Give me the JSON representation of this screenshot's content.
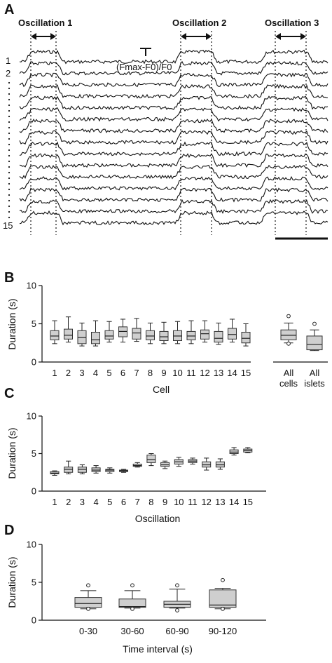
{
  "panel_a": {
    "label": "A",
    "oscillation_labels": [
      "Oscillation 1",
      "Oscillation 2",
      "Oscillation 3"
    ],
    "trace_labels": [
      "1",
      "2",
      "15"
    ],
    "trace_count": 15,
    "formula": "(Fmax-F0)/F0"
  },
  "chart_data": [
    {
      "type": "box",
      "panel": "B",
      "ylabel": "Duration (s)",
      "xlabel": "Cell",
      "ylim": [
        0,
        10
      ],
      "yticks": [
        0,
        5,
        10
      ],
      "categories": [
        "1",
        "2",
        "3",
        "4",
        "5",
        "6",
        "7",
        "8",
        "9",
        "10",
        "11",
        "12",
        "13",
        "14",
        "15"
      ],
      "boxes": [
        {
          "min": 2.4,
          "q1": 2.9,
          "median": 3.4,
          "q3": 4.1,
          "max": 5.4
        },
        {
          "min": 2.6,
          "q1": 3.0,
          "median": 3.5,
          "q3": 4.3,
          "max": 5.9
        },
        {
          "min": 2.1,
          "q1": 2.4,
          "median": 3.2,
          "q3": 4.1,
          "max": 5.1
        },
        {
          "min": 2.1,
          "q1": 2.4,
          "median": 2.9,
          "q3": 3.9,
          "max": 5.4
        },
        {
          "min": 2.6,
          "q1": 3.0,
          "median": 3.4,
          "q3": 4.1,
          "max": 5.3
        },
        {
          "min": 2.6,
          "q1": 3.3,
          "median": 4.0,
          "q3": 4.6,
          "max": 5.6
        },
        {
          "min": 2.7,
          "q1": 3.0,
          "median": 3.8,
          "q3": 4.4,
          "max": 5.7
        },
        {
          "min": 2.4,
          "q1": 2.9,
          "median": 3.4,
          "q3": 4.1,
          "max": 5.1
        },
        {
          "min": 2.4,
          "q1": 2.8,
          "median": 3.3,
          "q3": 4.0,
          "max": 5.2
        },
        {
          "min": 2.4,
          "q1": 2.8,
          "median": 3.4,
          "q3": 4.1,
          "max": 5.3
        },
        {
          "min": 2.4,
          "q1": 2.9,
          "median": 3.4,
          "q3": 4.0,
          "max": 5.4
        },
        {
          "min": 2.6,
          "q1": 3.0,
          "median": 3.7,
          "q3": 4.2,
          "max": 5.4
        },
        {
          "min": 2.3,
          "q1": 2.6,
          "median": 3.1,
          "q3": 4.0,
          "max": 5.1
        },
        {
          "min": 2.6,
          "q1": 3.0,
          "median": 3.6,
          "q3": 4.4,
          "max": 5.6
        },
        {
          "min": 2.1,
          "q1": 2.5,
          "median": 3.1,
          "q3": 3.9,
          "max": 5.0
        }
      ],
      "summary": {
        "categories": [
          "All cells",
          "All islets"
        ],
        "boxes": [
          {
            "min": 2.5,
            "q1": 2.9,
            "median": 3.5,
            "q3": 4.2,
            "max": 5.1,
            "outliers": [
              6.0,
              2.4
            ]
          },
          {
            "min": 1.5,
            "q1": 1.6,
            "median": 2.3,
            "q3": 3.4,
            "max": 4.2,
            "outliers": [
              5.0
            ]
          }
        ]
      }
    },
    {
      "type": "box",
      "panel": "C",
      "ylabel": "Duration (s)",
      "xlabel": "Oscillation",
      "ylim": [
        0,
        10
      ],
      "yticks": [
        0,
        5,
        10
      ],
      "categories": [
        "1",
        "2",
        "3",
        "4",
        "5",
        "6",
        "7",
        "8",
        "9",
        "10",
        "11",
        "12",
        "13",
        "14",
        "15"
      ],
      "boxes": [
        {
          "min": 2.1,
          "q1": 2.3,
          "median": 2.4,
          "q3": 2.6,
          "max": 2.7
        },
        {
          "min": 2.3,
          "q1": 2.5,
          "median": 2.9,
          "q3": 3.2,
          "max": 4.0
        },
        {
          "min": 2.3,
          "q1": 2.5,
          "median": 2.9,
          "q3": 3.2,
          "max": 3.5
        },
        {
          "min": 2.4,
          "q1": 2.6,
          "median": 2.8,
          "q3": 3.1,
          "max": 3.4
        },
        {
          "min": 2.4,
          "q1": 2.6,
          "median": 2.8,
          "q3": 2.9,
          "max": 3.1
        },
        {
          "min": 2.5,
          "q1": 2.6,
          "median": 2.7,
          "q3": 2.8,
          "max": 2.9
        },
        {
          "min": 3.2,
          "q1": 3.3,
          "median": 3.4,
          "q3": 3.6,
          "max": 3.8
        },
        {
          "min": 3.4,
          "q1": 3.8,
          "median": 4.2,
          "q3": 4.8,
          "max": 5.0
        },
        {
          "min": 3.0,
          "q1": 3.3,
          "median": 3.5,
          "q3": 3.8,
          "max": 4.0
        },
        {
          "min": 3.3,
          "q1": 3.6,
          "median": 3.9,
          "q3": 4.2,
          "max": 4.5
        },
        {
          "min": 3.6,
          "q1": 3.8,
          "median": 4.0,
          "q3": 4.2,
          "max": 4.4
        },
        {
          "min": 2.8,
          "q1": 3.2,
          "median": 3.5,
          "q3": 3.9,
          "max": 4.4
        },
        {
          "min": 2.9,
          "q1": 3.2,
          "median": 3.5,
          "q3": 3.9,
          "max": 4.3
        },
        {
          "min": 4.8,
          "q1": 5.0,
          "median": 5.2,
          "q3": 5.5,
          "max": 5.8
        },
        {
          "min": 5.1,
          "q1": 5.2,
          "median": 5.4,
          "q3": 5.6,
          "max": 5.8
        }
      ]
    },
    {
      "type": "box",
      "panel": "D",
      "ylabel": "Duration (s)",
      "xlabel": "Time interval (s)",
      "ylim": [
        0,
        10
      ],
      "yticks": [
        0,
        5,
        10
      ],
      "categories": [
        "0-30",
        "30-60",
        "60-90",
        "90-120"
      ],
      "boxes": [
        {
          "min": 1.5,
          "q1": 1.7,
          "median": 2.2,
          "q3": 3.0,
          "max": 3.9,
          "outliers": [
            4.6,
            1.5
          ]
        },
        {
          "min": 1.6,
          "q1": 1.7,
          "median": 1.8,
          "q3": 2.8,
          "max": 3.9,
          "outliers": [
            4.6,
            1.5
          ]
        },
        {
          "min": 1.6,
          "q1": 1.7,
          "median": 2.1,
          "q3": 2.5,
          "max": 4.1,
          "outliers": [
            4.6,
            1.3
          ]
        },
        {
          "min": 1.5,
          "q1": 1.7,
          "median": 2.0,
          "q3": 4.0,
          "max": 4.2,
          "outliers": [
            5.3,
            1.5
          ]
        }
      ]
    }
  ]
}
